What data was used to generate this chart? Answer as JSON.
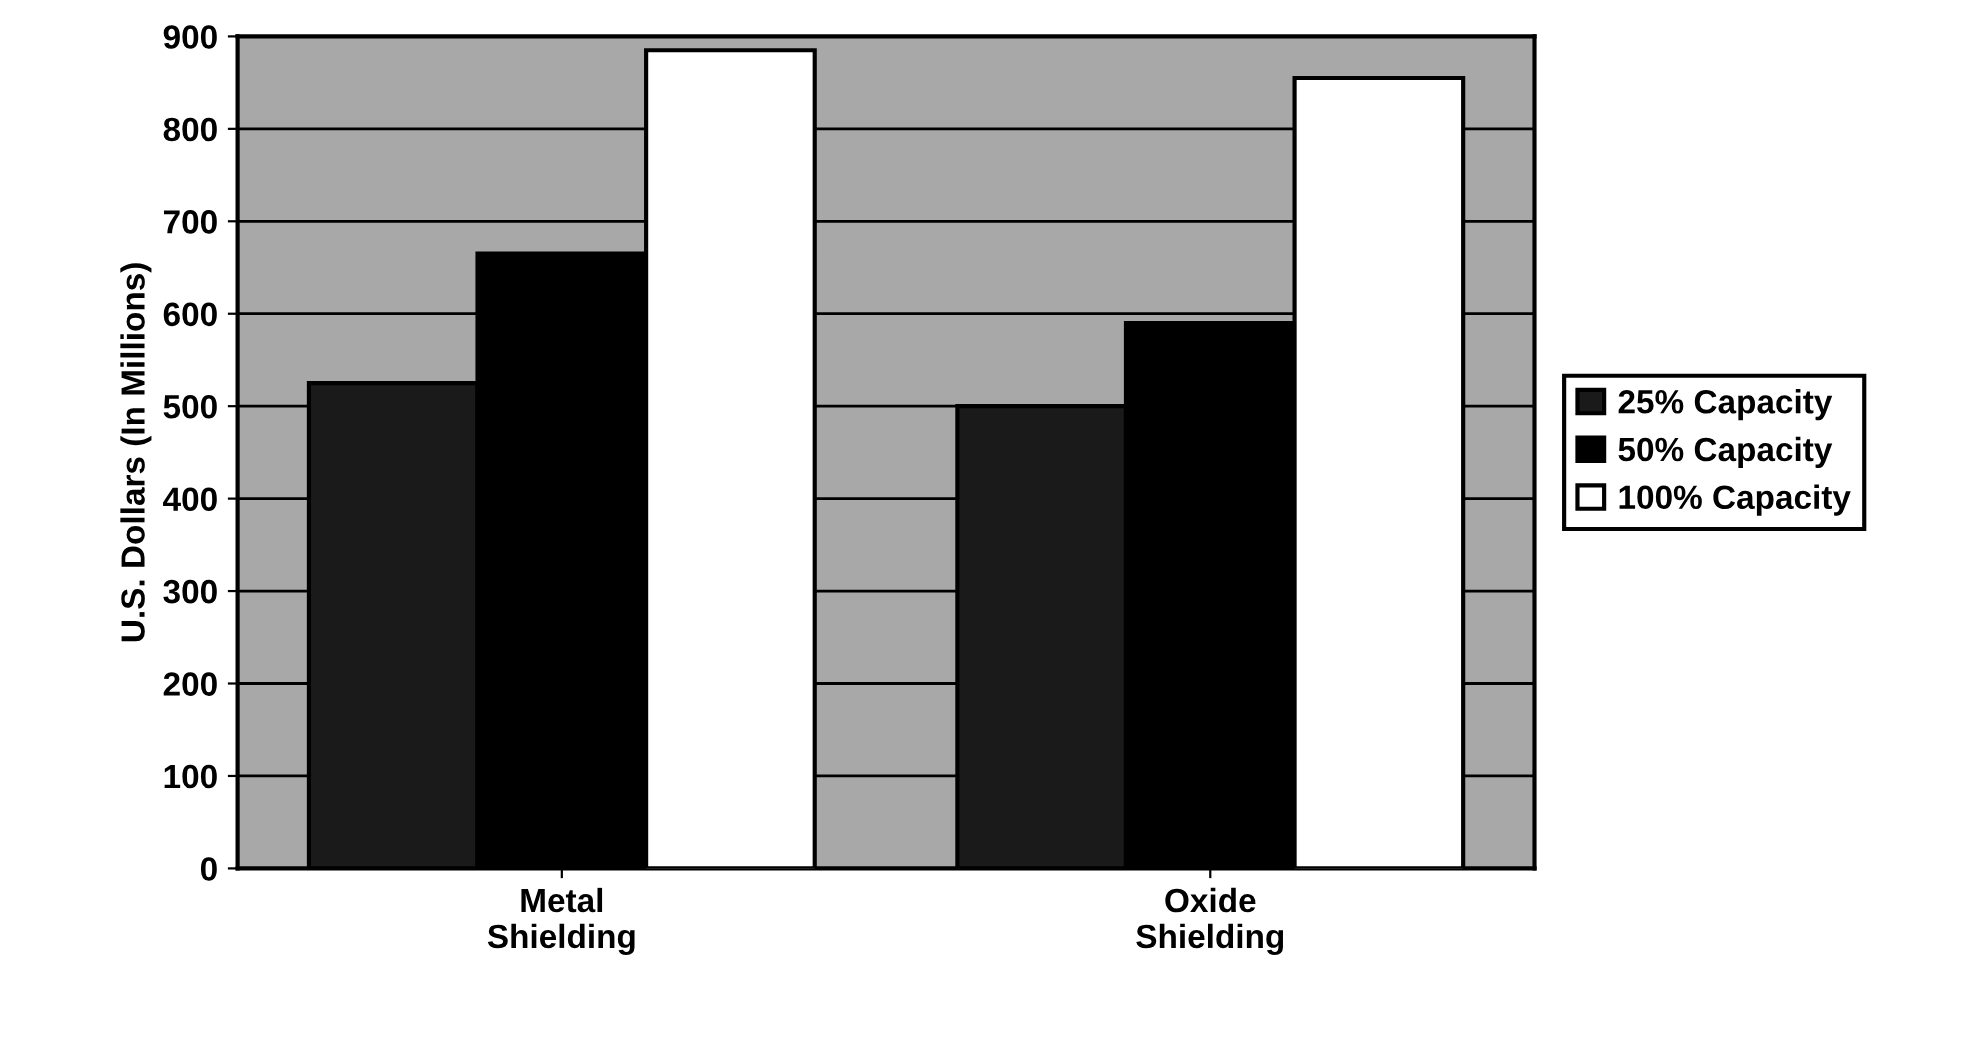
{
  "chart_data": {
    "type": "bar",
    "ylabel": "U.S. Dollars (In Millions)",
    "categories": [
      "Metal\nShielding",
      "Oxide\nShielding"
    ],
    "series": [
      {
        "name": "25% Capacity",
        "color": "#1a1a1a",
        "values": [
          525,
          500
        ]
      },
      {
        "name": "50% Capacity",
        "color": "#000000",
        "values": [
          665,
          590
        ]
      },
      {
        "name": "100% Capacity",
        "color": "#ffffff",
        "values": [
          885,
          855
        ]
      }
    ],
    "ylim": [
      0,
      900
    ],
    "yticks": [
      0,
      100,
      200,
      300,
      400,
      500,
      600,
      700,
      800,
      900
    ],
    "grid": "y",
    "legend": "right"
  }
}
